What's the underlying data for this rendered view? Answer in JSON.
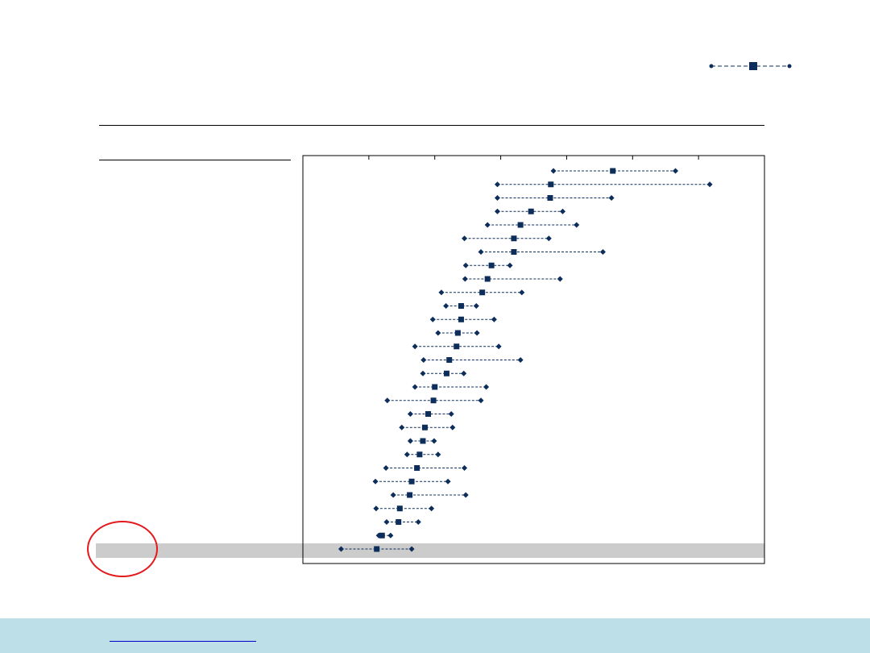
{
  "chart_data": {
    "type": "scatter",
    "title": "",
    "xlabel": "",
    "ylabel": "",
    "legend": {
      "position": "top-right"
    },
    "x_ticks": [
      100,
      200,
      300,
      400,
      500,
      600
    ],
    "xlim": [
      0,
      700
    ],
    "rows": [
      {
        "low": 380,
        "mid": 470,
        "high": 565
      },
      {
        "low": 295,
        "mid": 376,
        "high": 617
      },
      {
        "low": 295,
        "mid": 375,
        "high": 468
      },
      {
        "low": 295,
        "mid": 346,
        "high": 394
      },
      {
        "low": 280,
        "mid": 330,
        "high": 415
      },
      {
        "low": 245,
        "mid": 320,
        "high": 373
      },
      {
        "low": 270,
        "mid": 320,
        "high": 455
      },
      {
        "low": 247,
        "mid": 286,
        "high": 314
      },
      {
        "low": 246,
        "mid": 280,
        "high": 390
      },
      {
        "low": 210,
        "mid": 272,
        "high": 332
      },
      {
        "low": 217,
        "mid": 240,
        "high": 263
      },
      {
        "low": 197,
        "mid": 240,
        "high": 290
      },
      {
        "low": 205,
        "mid": 235,
        "high": 264
      },
      {
        "low": 170,
        "mid": 233,
        "high": 297
      },
      {
        "low": 183,
        "mid": 222,
        "high": 330
      },
      {
        "low": 182,
        "mid": 218,
        "high": 244
      },
      {
        "low": 170,
        "mid": 200,
        "high": 278
      },
      {
        "low": 128,
        "mid": 198,
        "high": 270
      },
      {
        "low": 163,
        "mid": 190,
        "high": 225
      },
      {
        "low": 150,
        "mid": 185,
        "high": 227
      },
      {
        "low": 163,
        "mid": 182,
        "high": 199
      },
      {
        "low": 158,
        "mid": 177,
        "high": 205
      },
      {
        "low": 126,
        "mid": 173,
        "high": 245
      },
      {
        "low": 110,
        "mid": 165,
        "high": 220
      },
      {
        "low": 137,
        "mid": 162,
        "high": 247
      },
      {
        "low": 111,
        "mid": 147,
        "high": 195
      },
      {
        "low": 127,
        "mid": 145,
        "high": 175
      },
      {
        "low": 115,
        "mid": 120,
        "high": 133
      },
      {
        "low": 58,
        "mid": 112,
        "high": 165
      }
    ],
    "highlighted_row": 28,
    "colors": {
      "marker": "#0d2d5a",
      "highlight": "#cccccc",
      "annotation_circle": "#e3191c",
      "footer": "#bde0e8"
    }
  }
}
